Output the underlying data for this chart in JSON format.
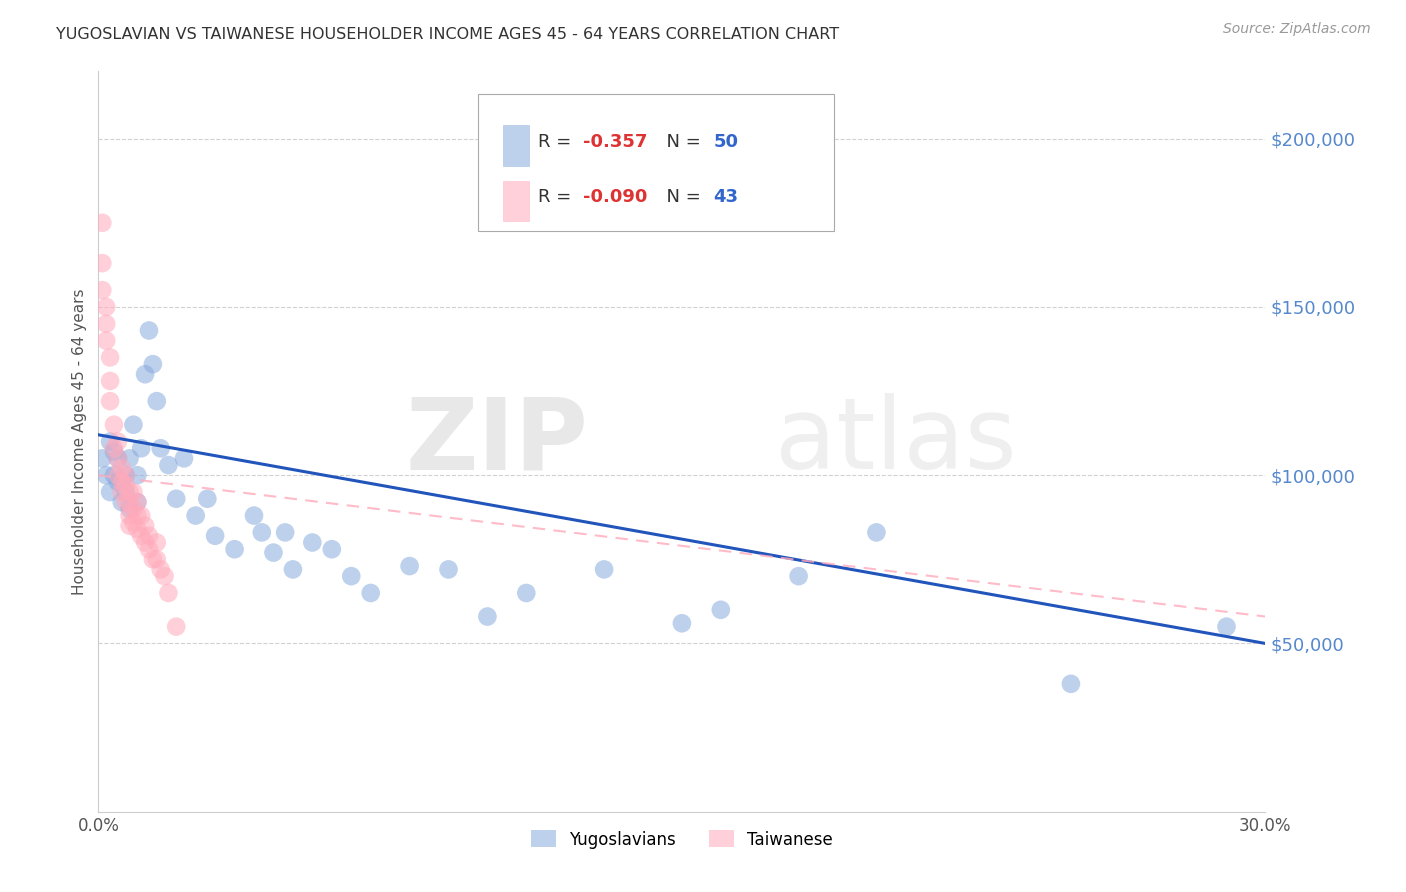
{
  "title": "YUGOSLAVIAN VS TAIWANESE HOUSEHOLDER INCOME AGES 45 - 64 YEARS CORRELATION CHART",
  "source": "Source: ZipAtlas.com",
  "ylabel": "Householder Income Ages 45 - 64 years",
  "xlim": [
    0.0,
    0.3
  ],
  "ylim": [
    0,
    220000
  ],
  "yticks": [
    50000,
    100000,
    150000,
    200000
  ],
  "ytick_labels": [
    "$50,000",
    "$100,000",
    "$150,000",
    "$200,000"
  ],
  "xticks": [
    0.0,
    0.05,
    0.1,
    0.15,
    0.2,
    0.25,
    0.3
  ],
  "background_color": "#ffffff",
  "grid_color": "#cccccc",
  "watermark_text": "ZIPatlas",
  "legend_r1": "-0.357",
  "legend_n1": "50",
  "legend_r2": "-0.090",
  "legend_n2": "43",
  "yugoslavian_color": "#88aadd",
  "taiwanese_color": "#ffaabb",
  "line_blue": "#2255bb",
  "line_pink": "#ffaabb",
  "ytick_color": "#5588cc",
  "title_color": "#333333",
  "source_color": "#999999",
  "yug_x": [
    0.001,
    0.002,
    0.003,
    0.003,
    0.004,
    0.004,
    0.005,
    0.005,
    0.006,
    0.006,
    0.007,
    0.007,
    0.008,
    0.008,
    0.009,
    0.01,
    0.01,
    0.011,
    0.012,
    0.013,
    0.014,
    0.015,
    0.016,
    0.018,
    0.02,
    0.022,
    0.025,
    0.028,
    0.03,
    0.035,
    0.04,
    0.042,
    0.045,
    0.048,
    0.05,
    0.055,
    0.06,
    0.065,
    0.07,
    0.08,
    0.09,
    0.1,
    0.11,
    0.13,
    0.15,
    0.16,
    0.18,
    0.2,
    0.25,
    0.29
  ],
  "yug_y": [
    105000,
    100000,
    110000,
    95000,
    100000,
    107000,
    98000,
    105000,
    92000,
    98000,
    100000,
    95000,
    105000,
    90000,
    115000,
    92000,
    100000,
    108000,
    130000,
    143000,
    133000,
    122000,
    108000,
    103000,
    93000,
    105000,
    88000,
    93000,
    82000,
    78000,
    88000,
    83000,
    77000,
    83000,
    72000,
    80000,
    78000,
    70000,
    65000,
    73000,
    72000,
    58000,
    65000,
    72000,
    56000,
    60000,
    70000,
    83000,
    38000,
    55000
  ],
  "tai_x": [
    0.001,
    0.001,
    0.001,
    0.002,
    0.002,
    0.002,
    0.003,
    0.003,
    0.003,
    0.004,
    0.004,
    0.005,
    0.005,
    0.005,
    0.006,
    0.006,
    0.006,
    0.007,
    0.007,
    0.007,
    0.008,
    0.008,
    0.008,
    0.008,
    0.009,
    0.009,
    0.009,
    0.01,
    0.01,
    0.01,
    0.011,
    0.011,
    0.012,
    0.012,
    0.013,
    0.013,
    0.014,
    0.015,
    0.015,
    0.016,
    0.017,
    0.018,
    0.02
  ],
  "tai_y": [
    175000,
    163000,
    155000,
    150000,
    145000,
    140000,
    135000,
    128000,
    122000,
    115000,
    108000,
    110000,
    105000,
    100000,
    102000,
    98000,
    95000,
    100000,
    97000,
    92000,
    95000,
    92000,
    88000,
    85000,
    95000,
    90000,
    86000,
    92000,
    88000,
    84000,
    88000,
    82000,
    85000,
    80000,
    82000,
    78000,
    75000,
    80000,
    75000,
    72000,
    70000,
    65000,
    55000
  ]
}
